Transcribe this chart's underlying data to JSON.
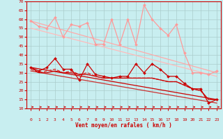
{
  "bg_color": "#c8eef0",
  "grid_color": "#aacccc",
  "xlabel": "Vent moyen/en rafales ( km/h )",
  "xlabel_color": "#cc0000",
  "tick_color": "#cc0000",
  "arrow_color": "#cc0000",
  "spine_color": "#cc0000",
  "xlim": [
    -0.5,
    23.5
  ],
  "ylim": [
    10,
    70
  ],
  "yticks": [
    10,
    15,
    20,
    25,
    30,
    35,
    40,
    45,
    50,
    55,
    60,
    65,
    70
  ],
  "xticks": [
    0,
    1,
    2,
    3,
    4,
    5,
    6,
    7,
    8,
    9,
    10,
    11,
    12,
    13,
    14,
    15,
    16,
    17,
    18,
    19,
    20,
    21,
    22,
    23
  ],
  "series": [
    {
      "x": [
        0,
        1,
        2,
        3,
        4,
        5,
        6,
        7,
        8,
        9,
        10,
        11,
        12,
        13,
        14,
        15,
        16,
        17,
        18,
        19,
        20,
        21,
        22,
        23
      ],
      "y": [
        59,
        56,
        55,
        61,
        50,
        57,
        56,
        58,
        46,
        46,
        60,
        46,
        60,
        46,
        68,
        60,
        55,
        51,
        57,
        41,
        30,
        30,
        29,
        31
      ],
      "color": "#ff9999",
      "lw": 0.9,
      "marker": "D",
      "ms": 2.0,
      "linestyle": "-",
      "zorder": 4
    },
    {
      "x": [
        0,
        23
      ],
      "y": [
        59,
        30
      ],
      "color": "#ffaaaa",
      "lw": 0.9,
      "marker": null,
      "ms": 0,
      "linestyle": "-",
      "zorder": 2
    },
    {
      "x": [
        0,
        23
      ],
      "y": [
        55,
        28
      ],
      "color": "#ffbbbb",
      "lw": 0.9,
      "marker": null,
      "ms": 0,
      "linestyle": "-",
      "zorder": 2
    },
    {
      "x": [
        0,
        1,
        2,
        3,
        4,
        5,
        6,
        7,
        8,
        9,
        10,
        11,
        12,
        13,
        14,
        15,
        16,
        17,
        18,
        19,
        20,
        21,
        22,
        23
      ],
      "y": [
        33,
        31,
        33,
        38,
        32,
        32,
        26,
        35,
        29,
        28,
        27,
        28,
        28,
        35,
        30,
        35,
        32,
        28,
        28,
        24,
        21,
        21,
        13,
        15
      ],
      "color": "#cc0000",
      "lw": 0.9,
      "marker": "D",
      "ms": 2.0,
      "linestyle": "-",
      "zorder": 4
    },
    {
      "x": [
        0,
        1,
        2,
        3,
        4,
        5,
        6,
        7,
        8,
        9,
        10,
        11,
        12,
        13,
        14,
        15,
        16,
        17,
        18,
        19,
        20,
        21,
        22,
        23
      ],
      "y": [
        32,
        30,
        31,
        32,
        30,
        31,
        29,
        30,
        28,
        27,
        27,
        27,
        27,
        27,
        27,
        27,
        26,
        25,
        25,
        23,
        21,
        20,
        15,
        15
      ],
      "color": "#dd2222",
      "lw": 0.9,
      "marker": null,
      "ms": 0,
      "linestyle": "--",
      "zorder": 3
    },
    {
      "x": [
        0,
        1,
        2,
        3,
        4,
        5,
        6,
        7,
        8,
        9,
        10,
        11,
        12,
        13,
        14,
        15,
        16,
        17,
        18,
        19,
        20,
        21,
        22,
        23
      ],
      "y": [
        33,
        30,
        30,
        31,
        30,
        30,
        29,
        29,
        28,
        27,
        27,
        27,
        27,
        27,
        27,
        27,
        26,
        25,
        25,
        23,
        21,
        20,
        15,
        15
      ],
      "color": "#cc0000",
      "lw": 0.9,
      "marker": null,
      "ms": 0,
      "linestyle": "-",
      "zorder": 3
    },
    {
      "x": [
        0,
        23
      ],
      "y": [
        33,
        15
      ],
      "color": "#cc0000",
      "lw": 0.9,
      "marker": null,
      "ms": 0,
      "linestyle": "-",
      "zorder": 2
    },
    {
      "x": [
        0,
        23
      ],
      "y": [
        31,
        13
      ],
      "color": "#cc3333",
      "lw": 0.9,
      "marker": null,
      "ms": 0,
      "linestyle": "-",
      "zorder": 2
    }
  ]
}
